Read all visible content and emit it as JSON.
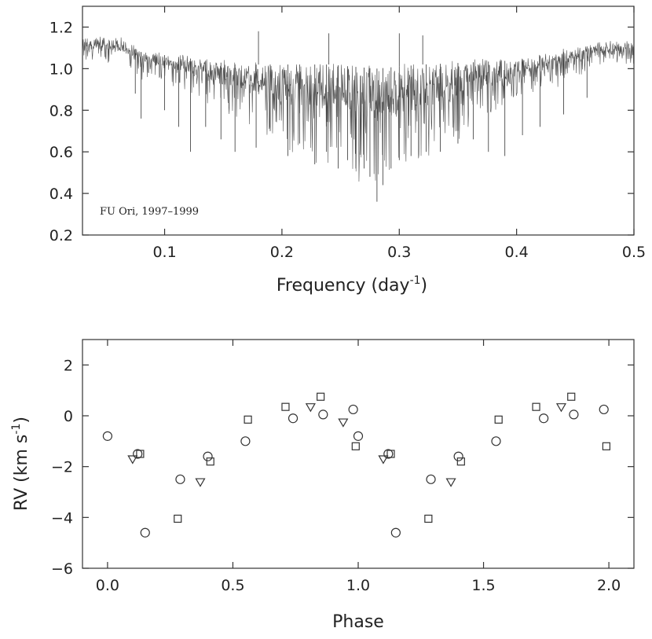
{
  "chart_data": [
    {
      "type": "line",
      "title": "",
      "xlabel": "Frequency (day",
      "xlabel_sup": "-1",
      "xlabel_end": ")",
      "ylabel": "",
      "annotation": "FU Ori, 1997–1999",
      "xlim": [
        0.03,
        0.5
      ],
      "ylim": [
        0.2,
        1.3
      ],
      "xticks": [
        0.1,
        0.2,
        0.3,
        0.4,
        0.5
      ],
      "xtick_labels": [
        "0.1",
        "0.2",
        "0.3",
        "0.4",
        "0.5"
      ],
      "yticks": [
        0.2,
        0.4,
        0.6,
        0.8,
        1.0,
        1.2
      ],
      "ytick_labels": [
        "0.2",
        "0.4",
        "0.6",
        "0.8",
        "1.0",
        "1.2"
      ],
      "series": [
        {
          "name": "periodogram",
          "color": "#333333",
          "baseline_envelope": {
            "x": [
              0.03,
              0.06,
              0.08,
              0.12,
              0.16,
              0.2,
              0.24,
              0.28,
              0.32,
              0.36,
              0.4,
              0.44,
              0.47,
              0.5
            ],
            "y": [
              1.14,
              1.14,
              1.08,
              1.05,
              1.02,
              1.02,
              1.02,
              1.0,
              1.02,
              1.03,
              1.04,
              1.08,
              1.12,
              1.12
            ]
          },
          "dips_x": [
            0.075,
            0.08,
            0.1,
            0.112,
            0.122,
            0.135,
            0.148,
            0.16,
            0.178,
            0.19,
            0.205,
            0.215,
            0.228,
            0.238,
            0.248,
            0.256,
            0.263,
            0.27,
            0.275,
            0.281,
            0.286,
            0.293,
            0.3,
            0.31,
            0.323,
            0.335,
            0.35,
            0.363,
            0.376,
            0.39,
            0.405,
            0.42,
            0.44,
            0.46
          ],
          "dips_y": [
            0.88,
            0.76,
            0.8,
            0.72,
            0.6,
            0.72,
            0.66,
            0.6,
            0.62,
            0.7,
            0.58,
            0.64,
            0.54,
            0.6,
            0.52,
            0.56,
            0.52,
            0.52,
            0.48,
            0.36,
            0.44,
            0.52,
            0.56,
            0.58,
            0.6,
            0.6,
            0.64,
            0.66,
            0.6,
            0.58,
            0.68,
            0.72,
            0.78,
            0.86
          ],
          "spikes_x": [
            0.18,
            0.24,
            0.3,
            0.32
          ],
          "spikes_y": [
            1.18,
            1.17,
            1.17,
            1.16
          ]
        }
      ]
    },
    {
      "type": "scatter",
      "title": "",
      "xlabel": "Phase",
      "ylabel": "RV (km s",
      "ylabel_sup": "-1",
      "ylabel_end": ")",
      "xlim": [
        -0.1,
        2.1
      ],
      "ylim": [
        -6,
        3
      ],
      "xticks": [
        0.0,
        0.5,
        1.0,
        1.5,
        2.0
      ],
      "xtick_labels": [
        "0.0",
        "0.5",
        "1.0",
        "1.5",
        "2.0"
      ],
      "yticks": [
        -6,
        -4,
        -2,
        0,
        2
      ],
      "ytick_labels": [
        "−6",
        "−4",
        "−2",
        "0",
        "2"
      ],
      "series": [
        {
          "name": "circles",
          "marker": "circle",
          "x": [
            0.0,
            0.12,
            0.15,
            0.29,
            0.4,
            0.55,
            0.74,
            0.86,
            0.98,
            1.0,
            1.12,
            1.15,
            1.29,
            1.4,
            1.55,
            1.74,
            1.86,
            1.98
          ],
          "y": [
            -0.8,
            -1.5,
            -4.6,
            -2.5,
            -1.6,
            -1.0,
            -0.1,
            0.05,
            0.25,
            -0.8,
            -1.5,
            -4.6,
            -2.5,
            -1.6,
            -1.0,
            -0.1,
            0.05,
            0.25
          ]
        },
        {
          "name": "squares",
          "marker": "square",
          "x": [
            0.13,
            0.28,
            0.41,
            0.56,
            0.71,
            0.85,
            0.99,
            1.13,
            1.28,
            1.41,
            1.56,
            1.71,
            1.85,
            1.99
          ],
          "y": [
            -1.5,
            -4.05,
            -1.8,
            -0.15,
            0.35,
            0.75,
            -1.2,
            -1.5,
            -4.05,
            -1.8,
            -0.15,
            0.35,
            0.75,
            -1.2
          ]
        },
        {
          "name": "triangles",
          "marker": "triangle-down",
          "x": [
            0.1,
            0.37,
            0.81,
            0.94,
            1.1,
            1.37,
            1.81
          ],
          "y": [
            -1.7,
            -2.6,
            0.35,
            -0.25,
            -1.7,
            -2.6,
            0.35
          ]
        }
      ]
    }
  ]
}
